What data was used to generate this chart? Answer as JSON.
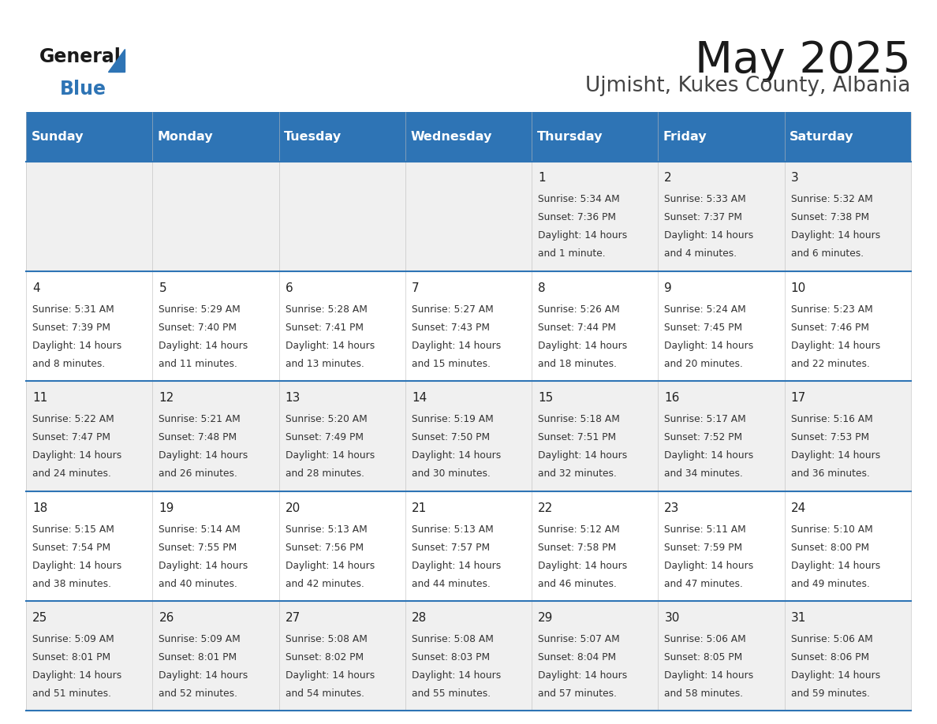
{
  "title": "May 2025",
  "subtitle": "Ujmisht, Kukes County, Albania",
  "days_of_week": [
    "Sunday",
    "Monday",
    "Tuesday",
    "Wednesday",
    "Thursday",
    "Friday",
    "Saturday"
  ],
  "header_bg": "#2E74B5",
  "header_text": "#FFFFFF",
  "row_bg_odd": "#F0F0F0",
  "row_bg_even": "#FFFFFF",
  "day_num_color": "#222222",
  "cell_text_color": "#333333",
  "separator_color": "#2E74B5",
  "title_color": "#1a1a1a",
  "subtitle_color": "#444444",
  "logo_general_color": "#1a1a1a",
  "logo_blue_color": "#2E74B5",
  "logo_triangle_color": "#2E74B5",
  "calendar_data": [
    {
      "day": 1,
      "col": 4,
      "row": 0,
      "sunrise": "5:34 AM",
      "sunset": "7:36 PM",
      "daylight_line1": "Daylight: 14 hours",
      "daylight_line2": "and 1 minute."
    },
    {
      "day": 2,
      "col": 5,
      "row": 0,
      "sunrise": "5:33 AM",
      "sunset": "7:37 PM",
      "daylight_line1": "Daylight: 14 hours",
      "daylight_line2": "and 4 minutes."
    },
    {
      "day": 3,
      "col": 6,
      "row": 0,
      "sunrise": "5:32 AM",
      "sunset": "7:38 PM",
      "daylight_line1": "Daylight: 14 hours",
      "daylight_line2": "and 6 minutes."
    },
    {
      "day": 4,
      "col": 0,
      "row": 1,
      "sunrise": "5:31 AM",
      "sunset": "7:39 PM",
      "daylight_line1": "Daylight: 14 hours",
      "daylight_line2": "and 8 minutes."
    },
    {
      "day": 5,
      "col": 1,
      "row": 1,
      "sunrise": "5:29 AM",
      "sunset": "7:40 PM",
      "daylight_line1": "Daylight: 14 hours",
      "daylight_line2": "and 11 minutes."
    },
    {
      "day": 6,
      "col": 2,
      "row": 1,
      "sunrise": "5:28 AM",
      "sunset": "7:41 PM",
      "daylight_line1": "Daylight: 14 hours",
      "daylight_line2": "and 13 minutes."
    },
    {
      "day": 7,
      "col": 3,
      "row": 1,
      "sunrise": "5:27 AM",
      "sunset": "7:43 PM",
      "daylight_line1": "Daylight: 14 hours",
      "daylight_line2": "and 15 minutes."
    },
    {
      "day": 8,
      "col": 4,
      "row": 1,
      "sunrise": "5:26 AM",
      "sunset": "7:44 PM",
      "daylight_line1": "Daylight: 14 hours",
      "daylight_line2": "and 18 minutes."
    },
    {
      "day": 9,
      "col": 5,
      "row": 1,
      "sunrise": "5:24 AM",
      "sunset": "7:45 PM",
      "daylight_line1": "Daylight: 14 hours",
      "daylight_line2": "and 20 minutes."
    },
    {
      "day": 10,
      "col": 6,
      "row": 1,
      "sunrise": "5:23 AM",
      "sunset": "7:46 PM",
      "daylight_line1": "Daylight: 14 hours",
      "daylight_line2": "and 22 minutes."
    },
    {
      "day": 11,
      "col": 0,
      "row": 2,
      "sunrise": "5:22 AM",
      "sunset": "7:47 PM",
      "daylight_line1": "Daylight: 14 hours",
      "daylight_line2": "and 24 minutes."
    },
    {
      "day": 12,
      "col": 1,
      "row": 2,
      "sunrise": "5:21 AM",
      "sunset": "7:48 PM",
      "daylight_line1": "Daylight: 14 hours",
      "daylight_line2": "and 26 minutes."
    },
    {
      "day": 13,
      "col": 2,
      "row": 2,
      "sunrise": "5:20 AM",
      "sunset": "7:49 PM",
      "daylight_line1": "Daylight: 14 hours",
      "daylight_line2": "and 28 minutes."
    },
    {
      "day": 14,
      "col": 3,
      "row": 2,
      "sunrise": "5:19 AM",
      "sunset": "7:50 PM",
      "daylight_line1": "Daylight: 14 hours",
      "daylight_line2": "and 30 minutes."
    },
    {
      "day": 15,
      "col": 4,
      "row": 2,
      "sunrise": "5:18 AM",
      "sunset": "7:51 PM",
      "daylight_line1": "Daylight: 14 hours",
      "daylight_line2": "and 32 minutes."
    },
    {
      "day": 16,
      "col": 5,
      "row": 2,
      "sunrise": "5:17 AM",
      "sunset": "7:52 PM",
      "daylight_line1": "Daylight: 14 hours",
      "daylight_line2": "and 34 minutes."
    },
    {
      "day": 17,
      "col": 6,
      "row": 2,
      "sunrise": "5:16 AM",
      "sunset": "7:53 PM",
      "daylight_line1": "Daylight: 14 hours",
      "daylight_line2": "and 36 minutes."
    },
    {
      "day": 18,
      "col": 0,
      "row": 3,
      "sunrise": "5:15 AM",
      "sunset": "7:54 PM",
      "daylight_line1": "Daylight: 14 hours",
      "daylight_line2": "and 38 minutes."
    },
    {
      "day": 19,
      "col": 1,
      "row": 3,
      "sunrise": "5:14 AM",
      "sunset": "7:55 PM",
      "daylight_line1": "Daylight: 14 hours",
      "daylight_line2": "and 40 minutes."
    },
    {
      "day": 20,
      "col": 2,
      "row": 3,
      "sunrise": "5:13 AM",
      "sunset": "7:56 PM",
      "daylight_line1": "Daylight: 14 hours",
      "daylight_line2": "and 42 minutes."
    },
    {
      "day": 21,
      "col": 3,
      "row": 3,
      "sunrise": "5:13 AM",
      "sunset": "7:57 PM",
      "daylight_line1": "Daylight: 14 hours",
      "daylight_line2": "and 44 minutes."
    },
    {
      "day": 22,
      "col": 4,
      "row": 3,
      "sunrise": "5:12 AM",
      "sunset": "7:58 PM",
      "daylight_line1": "Daylight: 14 hours",
      "daylight_line2": "and 46 minutes."
    },
    {
      "day": 23,
      "col": 5,
      "row": 3,
      "sunrise": "5:11 AM",
      "sunset": "7:59 PM",
      "daylight_line1": "Daylight: 14 hours",
      "daylight_line2": "and 47 minutes."
    },
    {
      "day": 24,
      "col": 6,
      "row": 3,
      "sunrise": "5:10 AM",
      "sunset": "8:00 PM",
      "daylight_line1": "Daylight: 14 hours",
      "daylight_line2": "and 49 minutes."
    },
    {
      "day": 25,
      "col": 0,
      "row": 4,
      "sunrise": "5:09 AM",
      "sunset": "8:01 PM",
      "daylight_line1": "Daylight: 14 hours",
      "daylight_line2": "and 51 minutes."
    },
    {
      "day": 26,
      "col": 1,
      "row": 4,
      "sunrise": "5:09 AM",
      "sunset": "8:01 PM",
      "daylight_line1": "Daylight: 14 hours",
      "daylight_line2": "and 52 minutes."
    },
    {
      "day": 27,
      "col": 2,
      "row": 4,
      "sunrise": "5:08 AM",
      "sunset": "8:02 PM",
      "daylight_line1": "Daylight: 14 hours",
      "daylight_line2": "and 54 minutes."
    },
    {
      "day": 28,
      "col": 3,
      "row": 4,
      "sunrise": "5:08 AM",
      "sunset": "8:03 PM",
      "daylight_line1": "Daylight: 14 hours",
      "daylight_line2": "and 55 minutes."
    },
    {
      "day": 29,
      "col": 4,
      "row": 4,
      "sunrise": "5:07 AM",
      "sunset": "8:04 PM",
      "daylight_line1": "Daylight: 14 hours",
      "daylight_line2": "and 57 minutes."
    },
    {
      "day": 30,
      "col": 5,
      "row": 4,
      "sunrise": "5:06 AM",
      "sunset": "8:05 PM",
      "daylight_line1": "Daylight: 14 hours",
      "daylight_line2": "and 58 minutes."
    },
    {
      "day": 31,
      "col": 6,
      "row": 4,
      "sunrise": "5:06 AM",
      "sunset": "8:06 PM",
      "daylight_line1": "Daylight: 14 hours",
      "daylight_line2": "and 59 minutes."
    }
  ],
  "num_rows": 5,
  "num_cols": 7,
  "fig_width": 11.88,
  "fig_height": 9.18,
  "dpi": 100
}
